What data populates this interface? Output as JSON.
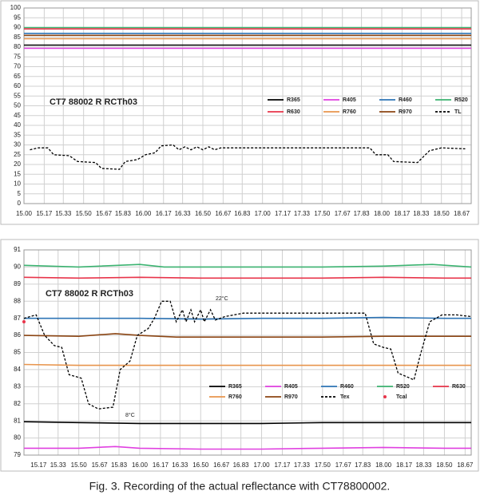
{
  "chart_data": [
    {
      "type": "line",
      "title": "CT7 88002 R RCTh03",
      "xlim": [
        15.0,
        18.75
      ],
      "ylim": [
        0,
        100
      ],
      "xticks": [
        {
          "value": 15.0,
          "label": "15.00"
        },
        15.17,
        15.33,
        {
          "value": 15.5,
          "label": "15.50"
        },
        15.67,
        15.83,
        {
          "value": 16.0,
          "label": "16.00"
        },
        16.17,
        16.33,
        {
          "value": 16.5,
          "label": "16.50"
        },
        16.67,
        16.83,
        {
          "value": 17.0,
          "label": "17.00"
        },
        17.17,
        17.33,
        {
          "value": 17.5,
          "label": "17.50"
        },
        17.67,
        17.83,
        {
          "value": 18.0,
          "label": "18.00"
        },
        18.17,
        18.33,
        {
          "value": 18.5,
          "label": "18.50"
        },
        18.67
      ],
      "yticks": [
        0,
        5,
        10,
        15,
        20,
        25,
        30,
        35,
        40,
        45,
        50,
        55,
        60,
        65,
        70,
        75,
        80,
        85,
        90,
        95,
        100
      ],
      "grid": true,
      "series": [
        {
          "name": "R365",
          "color": "#000000",
          "x": [
            15.0,
            16.0,
            17.0,
            18.0,
            18.75
          ],
          "values": [
            81,
            81,
            81,
            81,
            81
          ]
        },
        {
          "name": "R405",
          "color": "#e040e0",
          "x": [
            15.0,
            16.0,
            17.0,
            18.0,
            18.75
          ],
          "values": [
            79.4,
            79.4,
            79.4,
            79.4,
            79.4
          ]
        },
        {
          "name": "R460",
          "color": "#2e75b6",
          "x": [
            15.0,
            16.0,
            17.0,
            18.0,
            18.75
          ],
          "values": [
            87,
            87,
            87,
            87,
            87
          ]
        },
        {
          "name": "R520",
          "color": "#3cb371",
          "x": [
            15.0,
            16.0,
            17.0,
            18.0,
            18.75
          ],
          "values": [
            90,
            90,
            90,
            90,
            90
          ]
        },
        {
          "name": "R630",
          "color": "#e8344a",
          "x": [
            15.0,
            16.0,
            17.0,
            18.0,
            18.75
          ],
          "values": [
            89.3,
            89.3,
            89.3,
            89.3,
            89.3
          ]
        },
        {
          "name": "R760",
          "color": "#e8954d",
          "x": [
            15.0,
            16.0,
            17.0,
            18.0,
            18.75
          ],
          "values": [
            84.3,
            84.3,
            84.3,
            84.3,
            84.3
          ]
        },
        {
          "name": "R970",
          "color": "#8b4513",
          "x": [
            15.0,
            16.0,
            17.0,
            18.0,
            18.75
          ],
          "values": [
            86,
            86,
            86,
            86,
            86
          ]
        },
        {
          "name": "TL",
          "color": "#000000",
          "dashed": true,
          "x": [
            15.05,
            15.12,
            15.2,
            15.25,
            15.38,
            15.45,
            15.6,
            15.65,
            15.8,
            15.85,
            15.95,
            16.02,
            16.1,
            16.15,
            16.25,
            16.3,
            16.35,
            16.4,
            16.45,
            16.5,
            16.55,
            16.6,
            16.65,
            16.8,
            17.2,
            17.6,
            17.9,
            17.95,
            18.05,
            18.1,
            18.3,
            18.4,
            18.5,
            18.7
          ],
          "values": [
            27.5,
            28.5,
            28.5,
            25,
            24.5,
            21.5,
            21,
            18,
            17.5,
            21.5,
            22.5,
            25,
            26,
            29.5,
            30,
            27.5,
            29,
            27.5,
            29,
            27.5,
            29,
            27.5,
            28.5,
            28.5,
            28.5,
            28.5,
            28.5,
            25,
            25,
            21.5,
            21,
            27,
            28.5,
            28
          ]
        }
      ]
    },
    {
      "type": "line",
      "title": "CT7 88002 R RCTh03",
      "annotations": [
        "22°C",
        "8°C"
      ],
      "xlim": [
        15.05,
        18.72
      ],
      "ylim": [
        79,
        91
      ],
      "xticks": [
        15.17,
        15.33,
        {
          "value": 15.5,
          "label": "15.50"
        },
        15.67,
        15.83,
        {
          "value": 16.0,
          "label": "16.00"
        },
        16.17,
        16.33,
        {
          "value": 16.5,
          "label": "16.50"
        },
        16.67,
        16.83,
        {
          "value": 17.0,
          "label": "17.00"
        },
        17.17,
        17.33,
        {
          "value": 17.5,
          "label": "17.50"
        },
        17.67,
        17.83,
        {
          "value": 18.0,
          "label": "18.00"
        },
        18.17,
        18.33,
        {
          "value": 18.5,
          "label": "18.50"
        },
        18.67
      ],
      "yticks": [
        79,
        80,
        81,
        82,
        83,
        84,
        85,
        86,
        87,
        88,
        89,
        90,
        91
      ],
      "grid": true,
      "series": [
        {
          "name": "R365",
          "color": "#000000",
          "x": [
            15.05,
            15.5,
            16.0,
            16.5,
            17.0,
            17.5,
            18.0,
            18.5,
            18.72
          ],
          "values": [
            80.95,
            80.9,
            80.85,
            80.85,
            80.85,
            80.9,
            80.9,
            80.9,
            80.9
          ]
        },
        {
          "name": "R405",
          "color": "#e040e0",
          "x": [
            15.05,
            15.5,
            15.8,
            16.0,
            16.5,
            17.0,
            17.5,
            18.0,
            18.5,
            18.72
          ],
          "values": [
            79.4,
            79.4,
            79.5,
            79.4,
            79.35,
            79.35,
            79.4,
            79.45,
            79.4,
            79.4
          ]
        },
        {
          "name": "R460",
          "color": "#2e75b6",
          "x": [
            15.05,
            15.5,
            16.0,
            16.5,
            17.0,
            17.5,
            18.0,
            18.5,
            18.72
          ],
          "values": [
            87.0,
            87.0,
            87.0,
            86.95,
            87.0,
            87.0,
            87.05,
            87.0,
            87.0
          ]
        },
        {
          "name": "R520",
          "color": "#3cb371",
          "x": [
            15.05,
            15.5,
            16.0,
            16.2,
            16.5,
            17.0,
            17.5,
            18.0,
            18.4,
            18.72
          ],
          "values": [
            90.1,
            90.0,
            90.15,
            90.0,
            90.0,
            90.0,
            90.0,
            90.05,
            90.15,
            90.0
          ]
        },
        {
          "name": "R630",
          "color": "#e8344a",
          "x": [
            15.05,
            15.5,
            16.0,
            16.5,
            17.0,
            17.5,
            18.0,
            18.5,
            18.72
          ],
          "values": [
            89.4,
            89.35,
            89.4,
            89.35,
            89.35,
            89.35,
            89.4,
            89.35,
            89.35
          ]
        },
        {
          "name": "R760",
          "color": "#e8954d",
          "x": [
            15.05,
            15.5,
            16.0,
            16.5,
            17.0,
            17.5,
            18.0,
            18.5,
            18.72
          ],
          "values": [
            84.3,
            84.25,
            84.25,
            84.25,
            84.25,
            84.25,
            84.25,
            84.25,
            84.25
          ]
        },
        {
          "name": "R970",
          "color": "#8b4513",
          "x": [
            15.05,
            15.5,
            15.8,
            16.0,
            16.3,
            16.5,
            17.0,
            17.5,
            18.0,
            18.5,
            18.72
          ],
          "values": [
            86.0,
            85.95,
            86.1,
            86.0,
            85.9,
            85.9,
            85.9,
            85.9,
            85.95,
            85.95,
            85.95
          ]
        },
        {
          "name": "Tex",
          "color": "#000000",
          "dashed": true,
          "x": [
            15.05,
            15.15,
            15.22,
            15.3,
            15.36,
            15.42,
            15.52,
            15.58,
            15.66,
            15.78,
            15.84,
            15.92,
            15.98,
            16.07,
            16.12,
            16.18,
            16.25,
            16.3,
            16.35,
            16.38,
            16.42,
            16.45,
            16.5,
            16.53,
            16.58,
            16.62,
            16.7,
            16.85,
            17.2,
            17.5,
            17.85,
            17.92,
            18.0,
            18.06,
            18.12,
            18.25,
            18.3,
            18.38,
            18.48,
            18.6,
            18.72
          ],
          "values": [
            87.0,
            87.2,
            86.0,
            85.4,
            85.3,
            83.7,
            83.5,
            82.0,
            81.7,
            81.8,
            84.0,
            84.5,
            86.0,
            86.4,
            87.0,
            88.0,
            88.0,
            86.8,
            87.5,
            86.8,
            87.5,
            86.8,
            87.5,
            86.8,
            87.5,
            86.9,
            87.1,
            87.3,
            87.3,
            87.3,
            87.3,
            85.5,
            85.3,
            85.2,
            83.8,
            83.4,
            84.8,
            86.8,
            87.2,
            87.2,
            87.1
          ]
        },
        {
          "name": "Tcal",
          "color": "#e8344a",
          "marker": true,
          "x": [
            15.05
          ],
          "values": [
            86.8
          ]
        }
      ]
    }
  ],
  "caption": "Fig. 3. Recording of the actual reflectance with CT78800002."
}
